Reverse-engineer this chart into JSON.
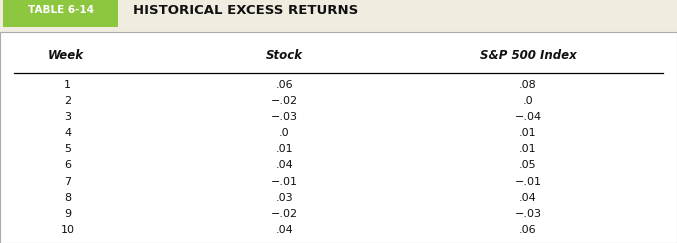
{
  "title": "HISTORICAL EXCESS RETURNS",
  "table_label": "TABLE 6-14",
  "col_headers": [
    "Week",
    "Stock",
    "S&P 500 Index"
  ],
  "weeks": [
    1,
    2,
    3,
    4,
    5,
    6,
    7,
    8,
    9,
    10
  ],
  "stock": [
    ".06",
    "−.02",
    "−.03",
    ".0",
    ".01",
    ".04",
    "−.01",
    ".03",
    "−.02",
    ".04"
  ],
  "sp500": [
    ".08",
    ".0",
    "−.04",
    ".01",
    ".01",
    ".05",
    "−.01",
    ".04",
    "−.03",
    ".06"
  ],
  "table_label_bg": "#8dc63f",
  "table_label_text": "#ffffff",
  "outer_border_color": "#aaaaaa",
  "header_line_color": "#000000",
  "fig_bg": "#f0ede0"
}
